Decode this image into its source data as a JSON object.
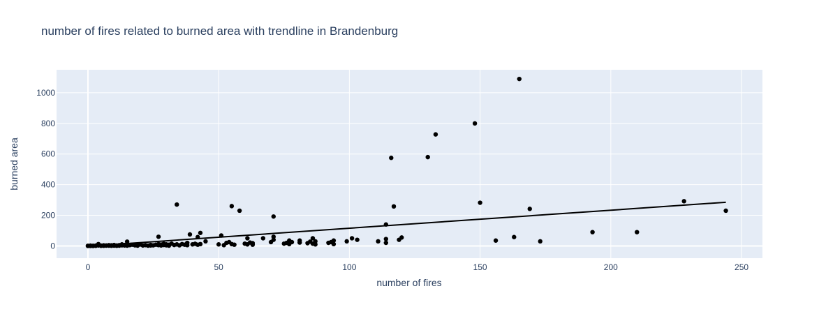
{
  "chart_data": {
    "type": "scatter",
    "title": "number of fires related to burned area with trendline in Brandenburg",
    "xlabel": "number of fires",
    "ylabel": "burned area",
    "xlim": [
      -12,
      258
    ],
    "ylim": [
      -80,
      1150
    ],
    "xticks": [
      0,
      50,
      100,
      150,
      200,
      250
    ],
    "yticks": [
      0,
      200,
      400,
      600,
      800,
      1000
    ],
    "grid": true,
    "background_color": "#E5ECF6",
    "grid_color": "#ffffff",
    "marker_color": "#000000",
    "line_color": "#000000",
    "series": [
      {
        "mode": "markers",
        "points": [
          [
            0,
            0
          ],
          [
            0,
            1
          ],
          [
            1,
            0
          ],
          [
            1,
            2
          ],
          [
            2,
            1
          ],
          [
            2,
            0
          ],
          [
            3,
            2
          ],
          [
            3,
            1
          ],
          [
            4,
            3
          ],
          [
            4,
            12
          ],
          [
            5,
            2
          ],
          [
            5,
            1
          ],
          [
            6,
            4
          ],
          [
            6,
            1
          ],
          [
            7,
            3
          ],
          [
            7,
            2
          ],
          [
            8,
            2
          ],
          [
            8,
            5
          ],
          [
            9,
            1
          ],
          [
            9,
            4
          ],
          [
            10,
            2
          ],
          [
            10,
            6
          ],
          [
            11,
            3
          ],
          [
            11,
            1
          ],
          [
            12,
            5
          ],
          [
            12,
            2
          ],
          [
            13,
            4
          ],
          [
            13,
            10
          ],
          [
            14,
            3
          ],
          [
            14,
            6
          ],
          [
            15,
            2
          ],
          [
            15,
            28
          ],
          [
            16,
            5
          ],
          [
            17,
            8
          ],
          [
            18,
            4
          ],
          [
            19,
            6
          ],
          [
            19,
            2
          ],
          [
            20,
            9
          ],
          [
            21,
            3
          ],
          [
            22,
            5
          ],
          [
            23,
            2
          ],
          [
            24,
            7
          ],
          [
            24,
            3
          ],
          [
            25,
            4
          ],
          [
            26,
            8
          ],
          [
            27,
            12
          ],
          [
            27,
            5
          ],
          [
            27,
            60
          ],
          [
            28,
            3
          ],
          [
            28,
            9
          ],
          [
            29,
            6
          ],
          [
            29,
            14
          ],
          [
            30,
            4
          ],
          [
            30,
            10
          ],
          [
            31,
            8
          ],
          [
            31,
            2
          ],
          [
            32,
            15
          ],
          [
            33,
            6
          ],
          [
            34,
            10
          ],
          [
            34,
            270
          ],
          [
            35,
            4
          ],
          [
            36,
            12
          ],
          [
            37,
            8
          ],
          [
            38,
            5
          ],
          [
            38,
            20
          ],
          [
            39,
            75
          ],
          [
            40,
            10
          ],
          [
            41,
            14
          ],
          [
            42,
            8
          ],
          [
            42,
            58
          ],
          [
            43,
            85
          ],
          [
            43,
            12
          ],
          [
            45,
            30
          ],
          [
            50,
            10
          ],
          [
            51,
            68
          ],
          [
            52,
            5
          ],
          [
            53,
            20
          ],
          [
            54,
            25
          ],
          [
            55,
            12
          ],
          [
            55,
            260
          ],
          [
            56,
            8
          ],
          [
            58,
            230
          ],
          [
            60,
            15
          ],
          [
            61,
            50
          ],
          [
            61,
            10
          ],
          [
            62,
            22
          ],
          [
            63,
            8
          ],
          [
            63,
            18
          ],
          [
            67,
            50
          ],
          [
            70,
            25
          ],
          [
            71,
            40
          ],
          [
            71,
            192
          ],
          [
            71,
            60
          ],
          [
            75,
            15
          ],
          [
            76,
            20
          ],
          [
            77,
            12
          ],
          [
            77,
            35
          ],
          [
            78,
            25
          ],
          [
            81,
            35
          ],
          [
            81,
            22
          ],
          [
            84,
            18
          ],
          [
            85,
            28
          ],
          [
            86,
            15
          ],
          [
            86,
            50
          ],
          [
            87,
            10
          ],
          [
            87,
            30
          ],
          [
            92,
            20
          ],
          [
            93,
            25
          ],
          [
            94,
            35
          ],
          [
            94,
            12
          ],
          [
            99,
            30
          ],
          [
            101,
            50
          ],
          [
            103,
            40
          ],
          [
            111,
            30
          ],
          [
            114,
            45
          ],
          [
            114,
            20
          ],
          [
            114,
            140
          ],
          [
            116,
            575
          ],
          [
            117,
            258
          ],
          [
            119,
            40
          ],
          [
            120,
            55
          ],
          [
            130,
            580
          ],
          [
            133,
            728
          ],
          [
            148,
            800
          ],
          [
            150,
            282
          ],
          [
            156,
            35
          ],
          [
            163,
            58
          ],
          [
            165,
            1090
          ],
          [
            169,
            242
          ],
          [
            173,
            30
          ],
          [
            193,
            90
          ],
          [
            210,
            90
          ],
          [
            228,
            292
          ],
          [
            244,
            230
          ]
        ]
      },
      {
        "mode": "line",
        "name": "trendline",
        "points": [
          [
            0,
            -2
          ],
          [
            244,
            285
          ]
        ]
      }
    ]
  }
}
